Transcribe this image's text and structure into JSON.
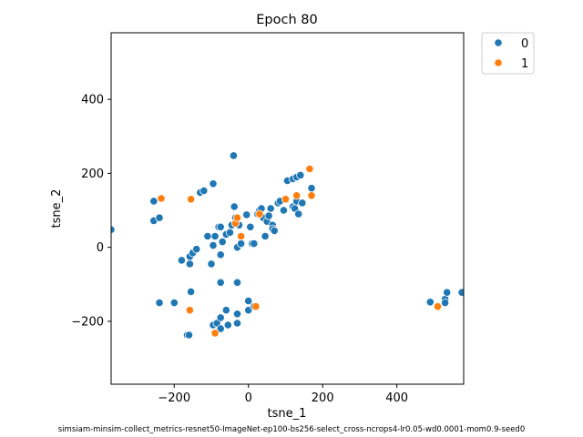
{
  "footnote": "simsiam-minsim-collect_metrics-resnet50-ImageNet-ep100-bs256-select_cross-ncrops4-lr0.05-wd0.0001-mom0.9-seed0",
  "chart_data": {
    "type": "scatter",
    "title": "Epoch 80",
    "xlabel": "tsne_1",
    "ylabel": "tsne_2",
    "xlim": [
      -370,
      580
    ],
    "ylim": [
      -370,
      580
    ],
    "xticks": [
      -200,
      0,
      200,
      400
    ],
    "yticks": [
      -200,
      0,
      200,
      400
    ],
    "grid": false,
    "legend": {
      "placement": "outside-top-right",
      "title": ""
    },
    "series": [
      {
        "name": "0",
        "color": "#1f77b4",
        "points": [
          [
            -370,
            48
          ],
          [
            -255,
            125
          ],
          [
            -255,
            72
          ],
          [
            -240,
            80
          ],
          [
            -240,
            -150
          ],
          [
            -200,
            -150
          ],
          [
            -180,
            -35
          ],
          [
            -165,
            -237
          ],
          [
            -160,
            -237
          ],
          [
            -158,
            -45
          ],
          [
            -158,
            -25
          ],
          [
            -155,
            -120
          ],
          [
            -150,
            -15
          ],
          [
            -140,
            -5
          ],
          [
            -130,
            148
          ],
          [
            -120,
            153
          ],
          [
            -110,
            30
          ],
          [
            -100,
            -45
          ],
          [
            -95,
            172
          ],
          [
            -95,
            5
          ],
          [
            -90,
            30
          ],
          [
            -95,
            -210
          ],
          [
            -85,
            -205
          ],
          [
            -80,
            55
          ],
          [
            -75,
            55
          ],
          [
            -75,
            -20
          ],
          [
            -75,
            -95
          ],
          [
            -75,
            -190
          ],
          [
            -75,
            -220
          ],
          [
            -70,
            15
          ],
          [
            -60,
            35
          ],
          [
            -60,
            -170
          ],
          [
            -55,
            -210
          ],
          [
            -50,
            40
          ],
          [
            -45,
            60
          ],
          [
            -40,
            248
          ],
          [
            -38,
            110
          ],
          [
            -35,
            80
          ],
          [
            -30,
            -180
          ],
          [
            -30,
            0
          ],
          [
            -30,
            -95
          ],
          [
            -30,
            -205
          ],
          [
            -25,
            60
          ],
          [
            -20,
            10
          ],
          [
            -5,
            88
          ],
          [
            0,
            -145
          ],
          [
            0,
            -170
          ],
          [
            5,
            55
          ],
          [
            10,
            10
          ],
          [
            15,
            10
          ],
          [
            15,
            -160
          ],
          [
            25,
            90
          ],
          [
            30,
            100
          ],
          [
            35,
            105
          ],
          [
            40,
            80
          ],
          [
            45,
            30
          ],
          [
            50,
            70
          ],
          [
            55,
            85
          ],
          [
            60,
            105
          ],
          [
            65,
            60
          ],
          [
            65,
            50
          ],
          [
            70,
            45
          ],
          [
            80,
            120
          ],
          [
            85,
            125
          ],
          [
            95,
            100
          ],
          [
            100,
            130
          ],
          [
            105,
            180
          ],
          [
            120,
            110
          ],
          [
            120,
            185
          ],
          [
            125,
            105
          ],
          [
            130,
            125
          ],
          [
            130,
            190
          ],
          [
            135,
            90
          ],
          [
            140,
            195
          ],
          [
            145,
            120
          ],
          [
            170,
            160
          ],
          [
            490,
            -148
          ],
          [
            530,
            -140
          ],
          [
            530,
            -150
          ],
          [
            535,
            -122
          ],
          [
            575,
            -122
          ]
        ]
      },
      {
        "name": "1",
        "color": "#ff7f0e",
        "points": [
          [
            -235,
            132
          ],
          [
            -155,
            130
          ],
          [
            -158,
            -170
          ],
          [
            -90,
            -232
          ],
          [
            -35,
            65
          ],
          [
            -30,
            80
          ],
          [
            -20,
            30
          ],
          [
            20,
            -160
          ],
          [
            30,
            90
          ],
          [
            100,
            130
          ],
          [
            130,
            140
          ],
          [
            165,
            212
          ],
          [
            170,
            140
          ],
          [
            510,
            -160
          ]
        ]
      }
    ]
  }
}
